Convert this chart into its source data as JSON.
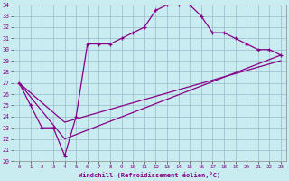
{
  "xlabel": "Windchill (Refroidissement éolien,°C)",
  "bg_color": "#c8ecf0",
  "line_color": "#880088",
  "grid_color": "#99bbcc",
  "xlim": [
    -0.5,
    23.5
  ],
  "ylim": [
    20,
    34
  ],
  "xticks": [
    0,
    1,
    2,
    3,
    4,
    5,
    6,
    7,
    8,
    9,
    10,
    11,
    12,
    13,
    14,
    15,
    16,
    17,
    18,
    19,
    20,
    21,
    22,
    23
  ],
  "yticks": [
    20,
    21,
    22,
    23,
    24,
    25,
    26,
    27,
    28,
    29,
    30,
    31,
    32,
    33,
    34
  ],
  "series": [
    {
      "x": [
        0,
        1,
        2,
        3,
        4,
        5,
        6,
        7,
        8,
        9,
        10,
        11,
        12,
        13,
        14,
        15,
        16,
        17,
        18,
        19,
        20,
        21,
        22,
        23
      ],
      "y": [
        27,
        25,
        23,
        23,
        20.5,
        24,
        30.5,
        30.5,
        30.5,
        31,
        31.5,
        32,
        33.5,
        34,
        34,
        34,
        33,
        31.5,
        31.5,
        31,
        30.5,
        30,
        30,
        29.5
      ],
      "marker": "+"
    },
    {
      "x": [
        0,
        4,
        23
      ],
      "y": [
        27,
        22,
        29.5
      ],
      "marker": null
    },
    {
      "x": [
        0,
        4,
        23
      ],
      "y": [
        27,
        23.5,
        29
      ],
      "marker": null
    }
  ]
}
